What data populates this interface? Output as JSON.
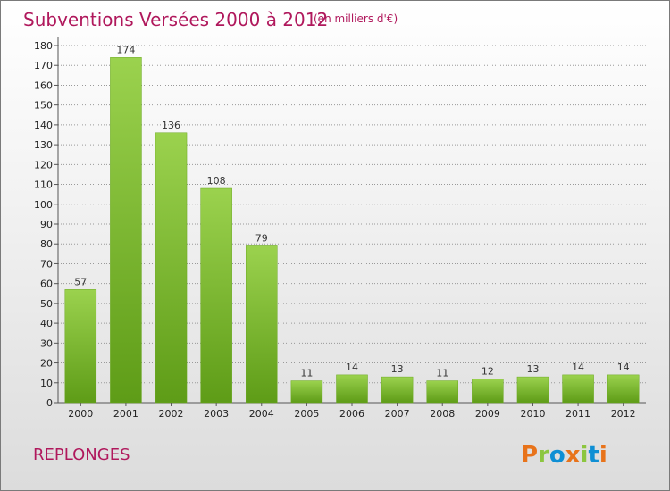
{
  "header": {
    "title": "Subventions Versées 2000 à 2012",
    "unit": "(en milliers d'€)"
  },
  "footer": {
    "commune": "REPLONGES",
    "logo_text": "Proxiti",
    "logo_colors": [
      "#e8731a",
      "#8cc63f",
      "#0f8fd4",
      "#e8731a",
      "#8cc63f",
      "#0f8fd4",
      "#e8731a"
    ]
  },
  "colors": {
    "title": "#b0185c",
    "bar_light": "#9bd24e",
    "bar_dark": "#5e9c17",
    "grid": "#999999"
  },
  "chart_data": {
    "type": "bar",
    "title": "Subventions Versées 2000 à 2012",
    "subtitle": "(en milliers d'€)",
    "xlabel": "",
    "ylabel": "",
    "categories": [
      "2000",
      "2001",
      "2002",
      "2003",
      "2004",
      "2005",
      "2006",
      "2007",
      "2008",
      "2009",
      "2010",
      "2011",
      "2012"
    ],
    "values": [
      57,
      174,
      136,
      108,
      79,
      11,
      14,
      13,
      11,
      12,
      13,
      14,
      14
    ],
    "ylim": [
      0,
      180
    ],
    "yticks": [
      0,
      10,
      20,
      30,
      40,
      50,
      60,
      70,
      80,
      90,
      100,
      110,
      120,
      130,
      140,
      150,
      160,
      170,
      180
    ],
    "grid": true,
    "legend": "none",
    "data_labels": true
  }
}
